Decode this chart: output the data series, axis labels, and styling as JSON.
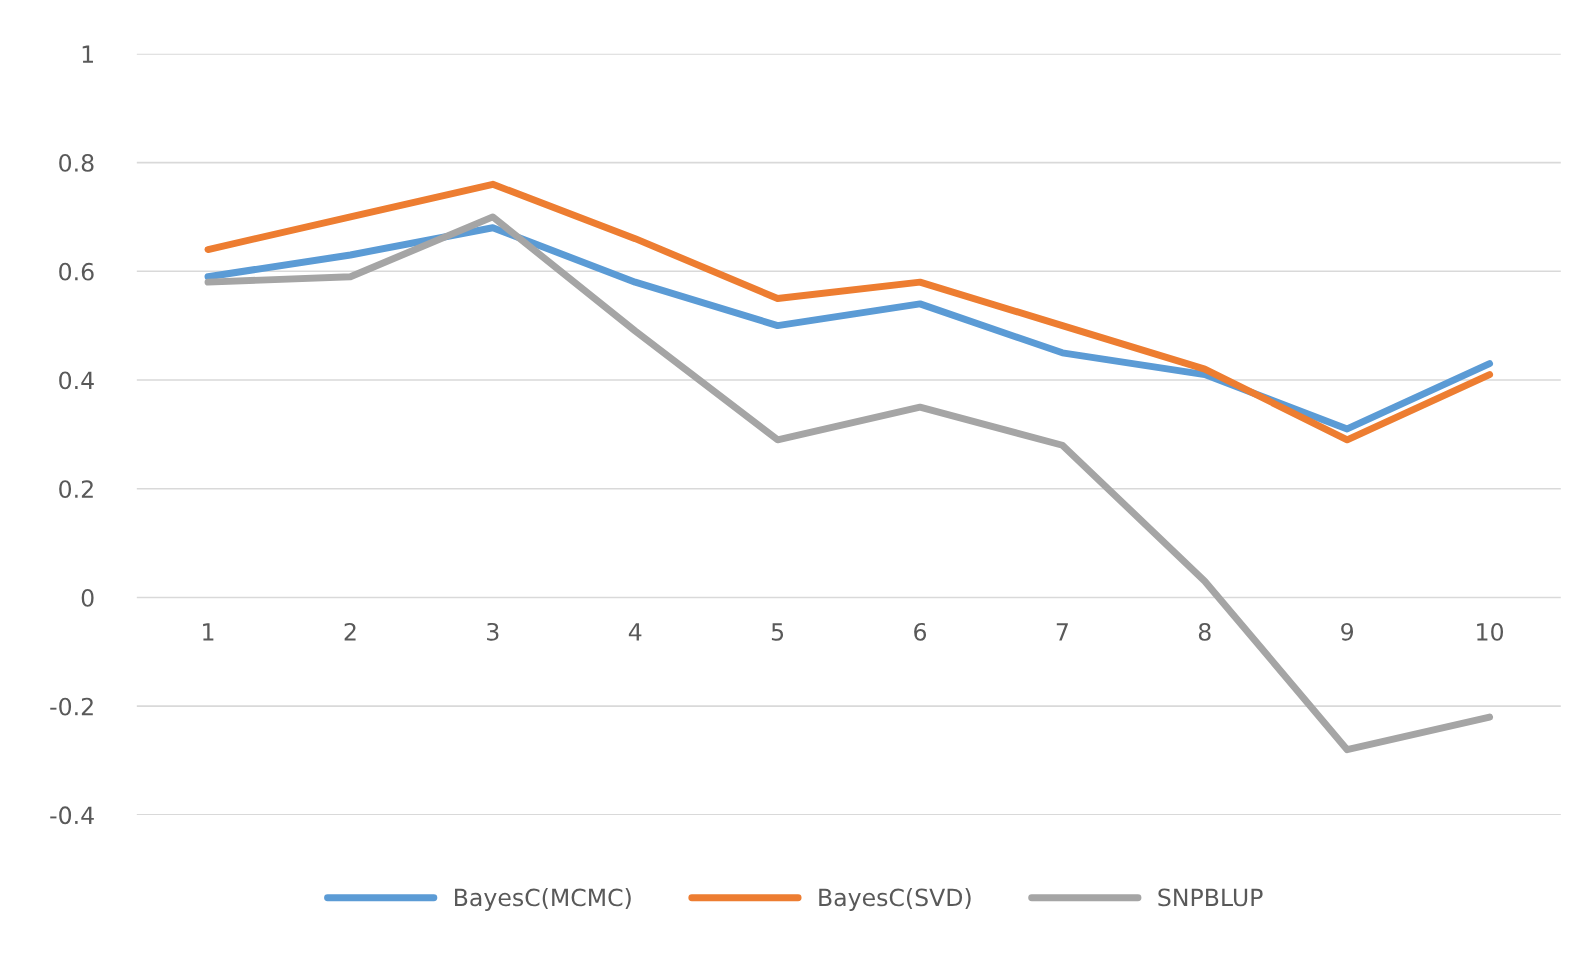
{
  "chart_data": {
    "type": "line",
    "categories": [
      "1",
      "2",
      "3",
      "4",
      "5",
      "6",
      "7",
      "8",
      "9",
      "10"
    ],
    "series": [
      {
        "name": "BayesC(MCMC)",
        "color": "#5b9bd5",
        "values": [
          0.59,
          0.63,
          0.68,
          0.58,
          0.5,
          0.54,
          0.45,
          0.41,
          0.31,
          0.43
        ]
      },
      {
        "name": "BayesC(SVD)",
        "color": "#ed7d31",
        "values": [
          0.64,
          0.7,
          0.76,
          0.66,
          0.55,
          0.58,
          0.5,
          0.42,
          0.29,
          0.41
        ]
      },
      {
        "name": "SNPBLUP",
        "color": "#a5a5a5",
        "values": [
          0.58,
          0.59,
          0.7,
          0.49,
          0.29,
          0.35,
          0.28,
          0.03,
          -0.28,
          -0.22
        ]
      }
    ],
    "ylim": [
      -0.4,
      1
    ],
    "yticks": [
      {
        "value": -0.4,
        "label": "-0.4"
      },
      {
        "value": -0.2,
        "label": "-0.2"
      },
      0,
      0.2,
      0.4,
      0.6,
      0.8,
      1
    ],
    "grid": "y",
    "legend": "bottom",
    "marker": "none",
    "line_style": "solid"
  }
}
